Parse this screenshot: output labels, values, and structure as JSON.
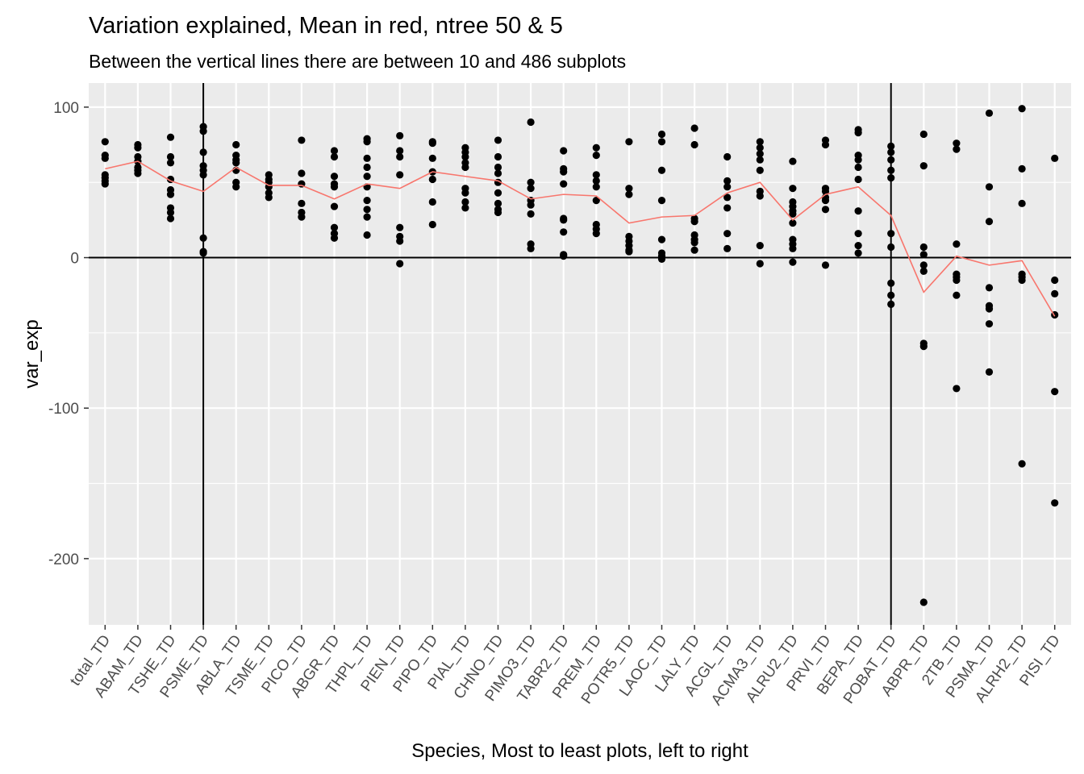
{
  "chart_data": {
    "type": "scatter",
    "title": "Variation explained, Mean in red, ntree 50 & 5",
    "subtitle": "Between the vertical lines there are between 10 and 486 subplots",
    "xlabel": "Species, Most to least plots, left to right",
    "ylabel": "var_exp",
    "ylim": [
      -244,
      116
    ],
    "yticks": [
      100,
      0,
      -100,
      -200
    ],
    "grid": true,
    "legend": "none",
    "colors": {
      "points": "#000000",
      "mean_line": "#f8766d",
      "panel": "#ebebeb",
      "grid": "#ffffff",
      "reference_lines": "#000000"
    },
    "reference_lines": {
      "hline_y": 0,
      "vlines_at": [
        "PSME_TD",
        "POBAT_TD"
      ]
    },
    "categories": [
      "total_TD",
      "ABAM_TD",
      "TSHE_TD",
      "PSME_TD",
      "ABLA_TD",
      "TSME_TD",
      "PICO_TD",
      "ABGR_TD",
      "THPL_TD",
      "PIEN_TD",
      "PIPO_TD",
      "PIAL_TD",
      "CHNO_TD",
      "PIMO3_TD",
      "TABR2_TD",
      "PREM_TD",
      "POTR5_TD",
      "LAOC_TD",
      "LALY_TD",
      "ACGL_TD",
      "ACMA3_TD",
      "ALRU2_TD",
      "PRVI_TD",
      "BEPA_TD",
      "POBAT_TD",
      "ABPR_TD",
      "2TB_TD",
      "PSMA_TD",
      "ALRH2_TD",
      "PISI_TD"
    ],
    "mean": [
      59,
      64,
      51,
      44,
      60,
      48,
      48,
      39,
      49,
      46,
      57,
      54,
      51,
      39,
      42,
      41,
      23,
      27,
      28,
      43,
      50,
      25,
      42,
      47,
      28,
      -23,
      1,
      -5,
      -2,
      -39
    ],
    "points": [
      [
        77,
        68,
        66,
        55,
        53,
        51,
        49
      ],
      [
        75,
        73,
        67,
        64,
        60,
        58,
        56
      ],
      [
        80,
        67,
        63,
        52,
        45,
        42,
        33,
        30,
        26
      ],
      [
        87,
        84,
        70,
        61,
        58,
        55,
        13,
        4,
        3
      ],
      [
        75,
        68,
        65,
        63,
        58,
        50,
        47
      ],
      [
        55,
        52,
        50,
        47,
        43,
        40
      ],
      [
        78,
        56,
        49,
        36,
        30,
        27
      ],
      [
        71,
        67,
        54,
        49,
        47,
        34,
        20,
        16,
        13
      ],
      [
        79,
        77,
        66,
        60,
        54,
        47,
        38,
        32,
        27,
        15
      ],
      [
        81,
        71,
        67,
        55,
        20,
        14,
        11,
        -4
      ],
      [
        77,
        76,
        66,
        57,
        52,
        37,
        22
      ],
      [
        73,
        70,
        67,
        63,
        60,
        46,
        43,
        37,
        33
      ],
      [
        78,
        67,
        60,
        56,
        50,
        43,
        36,
        32,
        30
      ],
      [
        90,
        50,
        46,
        38,
        35,
        29,
        9,
        6
      ],
      [
        71,
        59,
        57,
        49,
        26,
        25,
        17,
        2,
        1
      ],
      [
        73,
        68,
        55,
        51,
        47,
        38,
        22,
        19,
        16
      ],
      [
        77,
        46,
        42,
        14,
        11,
        8,
        5,
        4
      ],
      [
        82,
        77,
        58,
        38,
        12,
        3,
        1,
        -1
      ],
      [
        86,
        75,
        26,
        24,
        15,
        12,
        10,
        5
      ],
      [
        67,
        51,
        47,
        40,
        33,
        16,
        6
      ],
      [
        77,
        73,
        69,
        65,
        58,
        44,
        41,
        8,
        -4
      ],
      [
        64,
        46,
        37,
        34,
        31,
        29,
        23,
        12,
        9,
        6,
        -3
      ],
      [
        78,
        75,
        46,
        44,
        40,
        38,
        32,
        -5
      ],
      [
        85,
        83,
        68,
        65,
        60,
        52,
        31,
        16,
        8,
        3
      ],
      [
        74,
        70,
        65,
        58,
        53,
        16,
        7,
        -17,
        -25,
        -31
      ],
      [
        82,
        61,
        7,
        2,
        -5,
        -9,
        -57,
        -59,
        -229
      ],
      [
        76,
        72,
        9,
        -11,
        -13,
        -15,
        -25,
        -87
      ],
      [
        96,
        47,
        24,
        -20,
        -32,
        -34,
        -44,
        -76
      ],
      [
        99,
        59,
        36,
        -11,
        -13,
        -15,
        -137
      ],
      [
        66,
        -15,
        -24,
        -38,
        -89,
        -163
      ]
    ]
  }
}
